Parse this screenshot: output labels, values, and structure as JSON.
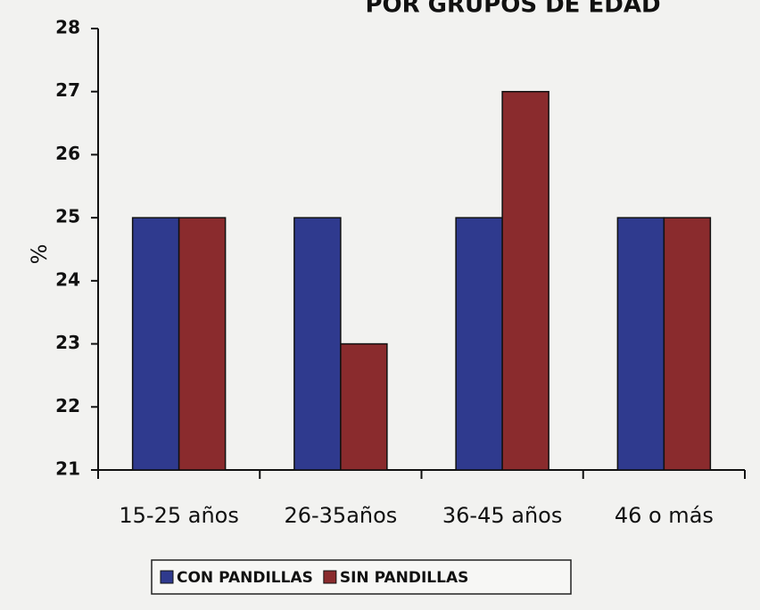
{
  "chart_data": {
    "type": "bar",
    "title": "POR GRUPOS DE EDAD",
    "y_label": "%",
    "categories": [
      "15-25 años",
      "26-35años",
      "36-45 años",
      "46 o más"
    ],
    "series": [
      {
        "name": "CON PANDILLAS",
        "color": "#2f3a8e",
        "values": [
          25,
          25,
          25,
          25
        ]
      },
      {
        "name": "SIN PANDILLAS",
        "color": "#8a2b2d",
        "values": [
          25,
          23,
          27,
          25
        ]
      }
    ],
    "ylim": [
      21,
      28
    ],
    "yticks": [
      21,
      22,
      23,
      24,
      25,
      26,
      27,
      28
    ],
    "grid": false,
    "legend": "bottom"
  }
}
